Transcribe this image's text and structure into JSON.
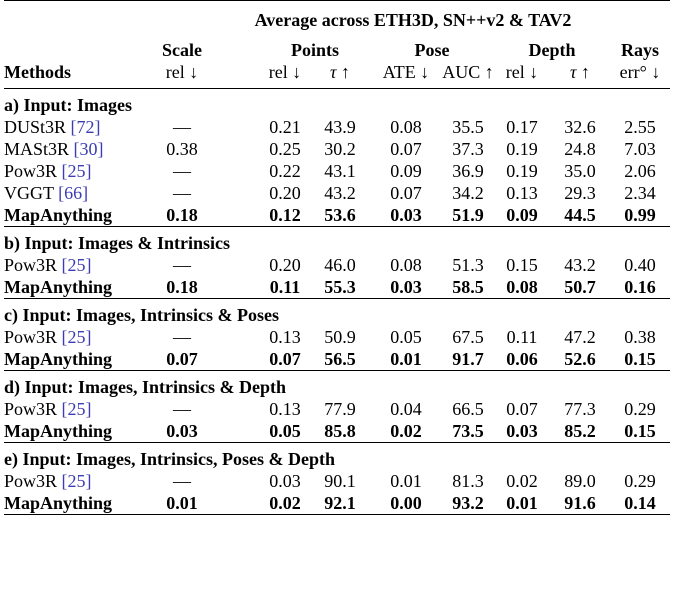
{
  "header": {
    "super": "Average across ETH3D, SN++v2 & TAV2",
    "methods_label": "Methods",
    "groups": [
      {
        "name": "Scale",
        "subs": [
          "rel ↓"
        ]
      },
      {
        "name": "Points",
        "subs": [
          "rel ↓",
          "τ ↑"
        ]
      },
      {
        "name": "Pose",
        "subs": [
          "ATE ↓",
          "AUC ↑"
        ]
      },
      {
        "name": "Depth",
        "subs": [
          "rel ↓",
          "τ ↑"
        ]
      },
      {
        "name": "Rays",
        "subs": [
          "err° ↓"
        ]
      }
    ]
  },
  "sections": [
    {
      "title": "a) Input: Images",
      "rows": [
        {
          "method": "DUSt3R",
          "cite": "[72]",
          "bold": false,
          "values": [
            "—",
            "0.21",
            "43.9",
            "0.08",
            "35.5",
            "0.17",
            "32.6",
            "2.55"
          ]
        },
        {
          "method": "MASt3R",
          "cite": "[30]",
          "bold": false,
          "values": [
            "0.38",
            "0.25",
            "30.2",
            "0.07",
            "37.3",
            "0.19",
            "24.8",
            "7.03"
          ]
        },
        {
          "method": "Pow3R",
          "cite": "[25]",
          "bold": false,
          "values": [
            "—",
            "0.22",
            "43.1",
            "0.09",
            "36.9",
            "0.19",
            "35.0",
            "2.06"
          ]
        },
        {
          "method": "VGGT",
          "cite": "[66]",
          "bold": false,
          "values": [
            "—",
            "0.20",
            "43.2",
            "0.07",
            "34.2",
            "0.13",
            "29.3",
            "2.34"
          ]
        },
        {
          "method": "MapAnything",
          "cite": "",
          "bold": true,
          "values": [
            "0.18",
            "0.12",
            "53.6",
            "0.03",
            "51.9",
            "0.09",
            "44.5",
            "0.99"
          ]
        }
      ]
    },
    {
      "title": "b) Input: Images & Intrinsics",
      "rows": [
        {
          "method": "Pow3R",
          "cite": "[25]",
          "bold": false,
          "values": [
            "—",
            "0.20",
            "46.0",
            "0.08",
            "51.3",
            "0.15",
            "43.2",
            "0.40"
          ]
        },
        {
          "method": "MapAnything",
          "cite": "",
          "bold": true,
          "values": [
            "0.18",
            "0.11",
            "55.3",
            "0.03",
            "58.5",
            "0.08",
            "50.7",
            "0.16"
          ]
        }
      ]
    },
    {
      "title": "c) Input: Images, Intrinsics & Poses",
      "rows": [
        {
          "method": "Pow3R",
          "cite": "[25]",
          "bold": false,
          "values": [
            "—",
            "0.13",
            "50.9",
            "0.05",
            "67.5",
            "0.11",
            "47.2",
            "0.38"
          ]
        },
        {
          "method": "MapAnything",
          "cite": "",
          "bold": true,
          "values": [
            "0.07",
            "0.07",
            "56.5",
            "0.01",
            "91.7",
            "0.06",
            "52.6",
            "0.15"
          ]
        }
      ]
    },
    {
      "title": "d) Input: Images, Intrinsics & Depth",
      "rows": [
        {
          "method": "Pow3R",
          "cite": "[25]",
          "bold": false,
          "values": [
            "—",
            "0.13",
            "77.9",
            "0.04",
            "66.5",
            "0.07",
            "77.3",
            "0.29"
          ]
        },
        {
          "method": "MapAnything",
          "cite": "",
          "bold": true,
          "values": [
            "0.03",
            "0.05",
            "85.8",
            "0.02",
            "73.5",
            "0.03",
            "85.2",
            "0.15"
          ]
        }
      ]
    },
    {
      "title": "e) Input: Images, Intrinsics, Poses & Depth",
      "rows": [
        {
          "method": "Pow3R",
          "cite": "[25]",
          "bold": false,
          "values": [
            "—",
            "0.03",
            "90.1",
            "0.01",
            "81.3",
            "0.02",
            "89.0",
            "0.29"
          ]
        },
        {
          "method": "MapAnything",
          "cite": "",
          "bold": true,
          "values": [
            "0.01",
            "0.02",
            "92.1",
            "0.00",
            "93.2",
            "0.01",
            "91.6",
            "0.14"
          ]
        }
      ]
    }
  ]
}
